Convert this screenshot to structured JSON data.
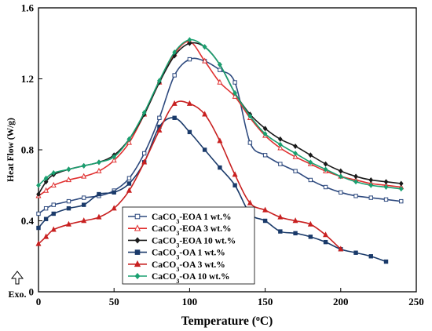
{
  "chart_data": {
    "type": "line",
    "xlabel": "Temperature (oC)",
    "ylabel": "Heat Flow (W/g)",
    "xlim": [
      0,
      250
    ],
    "ylim": [
      0,
      1.6
    ],
    "xticks": [
      0,
      50,
      100,
      150,
      200,
      250
    ],
    "yticks": [
      0,
      0.4,
      0.8,
      1.2,
      1.6
    ],
    "xtick_labels": [
      "0",
      "50",
      "100",
      "150",
      "200",
      "250"
    ],
    "ytick_labels": [
      "0",
      "0.4",
      "0.8",
      "1.2",
      "1.6"
    ],
    "grid": false,
    "legend_position": "bottom-center",
    "annotation": "Exo.",
    "series": [
      {
        "name": "CaCO3-EOA 1 wt.%",
        "color": "#2e4a7f",
        "marker": "open-square",
        "points": [
          [
            0,
            0.44
          ],
          [
            5,
            0.47
          ],
          [
            10,
            0.49
          ],
          [
            20,
            0.51
          ],
          [
            30,
            0.53
          ],
          [
            40,
            0.54
          ],
          [
            50,
            0.57
          ],
          [
            60,
            0.64
          ],
          [
            70,
            0.78
          ],
          [
            80,
            0.98
          ],
          [
            90,
            1.22
          ],
          [
            100,
            1.31
          ],
          [
            110,
            1.3
          ],
          [
            120,
            1.25
          ],
          [
            130,
            1.18
          ],
          [
            140,
            0.84
          ],
          [
            150,
            0.77
          ],
          [
            160,
            0.72
          ],
          [
            170,
            0.68
          ],
          [
            180,
            0.63
          ],
          [
            190,
            0.59
          ],
          [
            200,
            0.56
          ],
          [
            210,
            0.54
          ],
          [
            220,
            0.53
          ],
          [
            230,
            0.52
          ],
          [
            240,
            0.51
          ]
        ]
      },
      {
        "name": "CaCO3-EOA 3 wt.%",
        "color": "#e03030",
        "marker": "open-triangle",
        "points": [
          [
            0,
            0.54
          ],
          [
            5,
            0.57
          ],
          [
            10,
            0.6
          ],
          [
            20,
            0.63
          ],
          [
            30,
            0.65
          ],
          [
            40,
            0.68
          ],
          [
            50,
            0.74
          ],
          [
            60,
            0.84
          ],
          [
            70,
            1.0
          ],
          [
            80,
            1.18
          ],
          [
            90,
            1.34
          ],
          [
            100,
            1.41
          ],
          [
            110,
            1.3
          ],
          [
            120,
            1.18
          ],
          [
            130,
            1.1
          ],
          [
            140,
            0.98
          ],
          [
            150,
            0.88
          ],
          [
            160,
            0.81
          ],
          [
            170,
            0.76
          ],
          [
            180,
            0.72
          ],
          [
            190,
            0.68
          ],
          [
            200,
            0.65
          ],
          [
            210,
            0.63
          ],
          [
            220,
            0.61
          ],
          [
            230,
            0.6
          ],
          [
            240,
            0.59
          ]
        ]
      },
      {
        "name": "CaCO3-EOA 10 wt.%",
        "color": "#1a1a1a",
        "marker": "filled-diamond",
        "points": [
          [
            0,
            0.55
          ],
          [
            5,
            0.62
          ],
          [
            10,
            0.66
          ],
          [
            20,
            0.69
          ],
          [
            30,
            0.71
          ],
          [
            40,
            0.73
          ],
          [
            50,
            0.77
          ],
          [
            60,
            0.86
          ],
          [
            70,
            1.0
          ],
          [
            80,
            1.18
          ],
          [
            90,
            1.33
          ],
          [
            100,
            1.4
          ],
          [
            110,
            1.38
          ],
          [
            120,
            1.28
          ],
          [
            130,
            1.12
          ],
          [
            140,
            1.0
          ],
          [
            150,
            0.92
          ],
          [
            160,
            0.86
          ],
          [
            170,
            0.82
          ],
          [
            180,
            0.77
          ],
          [
            190,
            0.72
          ],
          [
            200,
            0.68
          ],
          [
            210,
            0.65
          ],
          [
            220,
            0.63
          ],
          [
            230,
            0.62
          ],
          [
            240,
            0.61
          ]
        ]
      },
      {
        "name": "CaCO3-OA 1 wt.%",
        "color": "#1a3a6a",
        "marker": "filled-square",
        "points": [
          [
            0,
            0.36
          ],
          [
            5,
            0.41
          ],
          [
            10,
            0.44
          ],
          [
            20,
            0.47
          ],
          [
            30,
            0.49
          ],
          [
            40,
            0.55
          ],
          [
            50,
            0.56
          ],
          [
            60,
            0.61
          ],
          [
            70,
            0.73
          ],
          [
            80,
            0.93
          ],
          [
            90,
            0.98
          ],
          [
            100,
            0.9
          ],
          [
            110,
            0.8
          ],
          [
            120,
            0.7
          ],
          [
            130,
            0.6
          ],
          [
            140,
            0.44
          ],
          [
            150,
            0.4
          ],
          [
            160,
            0.34
          ],
          [
            170,
            0.33
          ],
          [
            180,
            0.31
          ],
          [
            190,
            0.28
          ],
          [
            200,
            0.24
          ],
          [
            210,
            0.22
          ],
          [
            220,
            0.2
          ],
          [
            230,
            0.17
          ]
        ]
      },
      {
        "name": "CaCO3-OA 3 wt.%",
        "color": "#c82020",
        "marker": "filled-triangle",
        "points": [
          [
            0,
            0.27
          ],
          [
            5,
            0.31
          ],
          [
            10,
            0.35
          ],
          [
            20,
            0.38
          ],
          [
            30,
            0.4
          ],
          [
            40,
            0.42
          ],
          [
            50,
            0.47
          ],
          [
            60,
            0.57
          ],
          [
            70,
            0.73
          ],
          [
            80,
            0.91
          ],
          [
            90,
            1.06
          ],
          [
            100,
            1.06
          ],
          [
            110,
            1.0
          ],
          [
            120,
            0.85
          ],
          [
            130,
            0.66
          ],
          [
            140,
            0.5
          ],
          [
            150,
            0.46
          ],
          [
            160,
            0.42
          ],
          [
            170,
            0.4
          ],
          [
            180,
            0.38
          ],
          [
            190,
            0.32
          ],
          [
            200,
            0.24
          ]
        ]
      },
      {
        "name": "CaCO3-OA 10 wt.%",
        "color": "#1aa070",
        "marker": "filled-diamond",
        "points": [
          [
            0,
            0.6
          ],
          [
            5,
            0.64
          ],
          [
            10,
            0.67
          ],
          [
            20,
            0.69
          ],
          [
            30,
            0.71
          ],
          [
            40,
            0.73
          ],
          [
            50,
            0.76
          ],
          [
            60,
            0.86
          ],
          [
            70,
            1.01
          ],
          [
            80,
            1.19
          ],
          [
            90,
            1.35
          ],
          [
            100,
            1.42
          ],
          [
            110,
            1.38
          ],
          [
            120,
            1.28
          ],
          [
            130,
            1.12
          ],
          [
            140,
            0.99
          ],
          [
            150,
            0.89
          ],
          [
            160,
            0.83
          ],
          [
            170,
            0.78
          ],
          [
            180,
            0.73
          ],
          [
            190,
            0.69
          ],
          [
            200,
            0.65
          ],
          [
            210,
            0.62
          ],
          [
            220,
            0.6
          ],
          [
            230,
            0.59
          ],
          [
            240,
            0.58
          ]
        ]
      }
    ]
  }
}
